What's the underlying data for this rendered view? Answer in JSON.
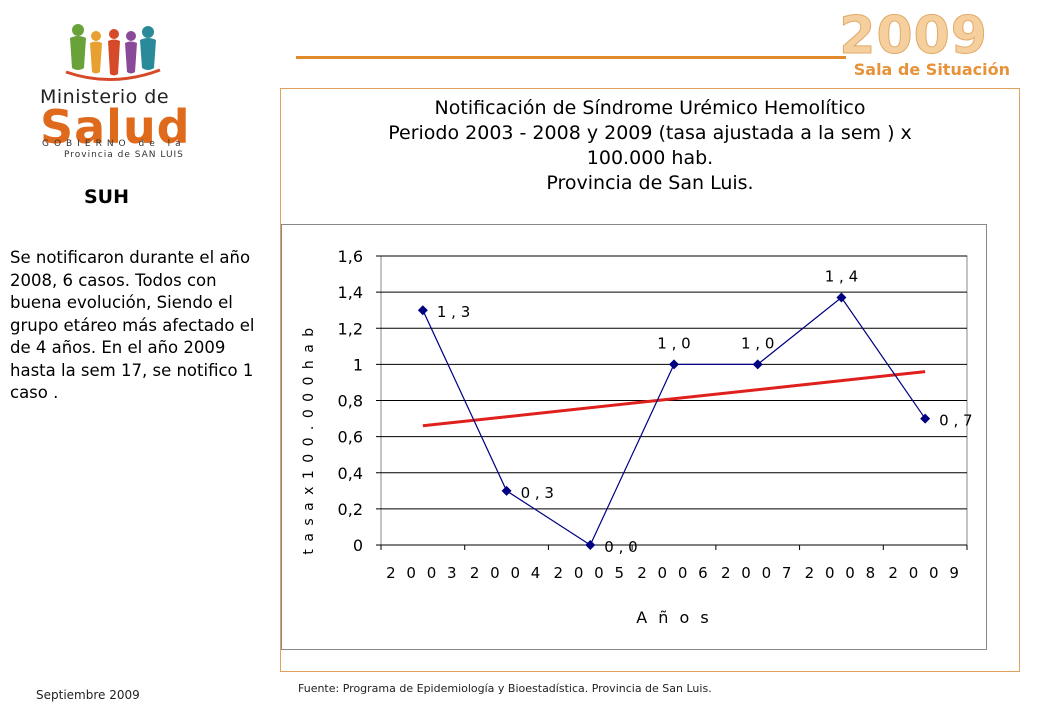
{
  "logo": {
    "ministerio": "Ministerio de",
    "salud": "Salud",
    "gobierno": "GOBIERNO de la",
    "provincia": "Provincia de SAN LUIS"
  },
  "header": {
    "year": "2009",
    "subtitle": "Sala de Situación"
  },
  "sidebar": {
    "title": "SUH",
    "body": "Se notificaron durante el año 2008, 6 casos. Todos con buena evolución, Siendo el grupo etáreo más afectado el de 4 años. En el año 2009 hasta la sem 17, se notifico 1 caso ."
  },
  "chart_title_lines": [
    "Notificación de Síndrome Urémico Hemolítico",
    "Periodo  2003 - 2008  y 2009 (tasa ajustada a la sem ) x",
    "100.000 hab.",
    "Provincia de San Luis."
  ],
  "chart_data": {
    "type": "line",
    "title": "Notificación de Síndrome Urémico Hemolítico Periodo 2003 - 2008 y 2009 (tasa ajustada a la sem ) x 100.000 hab. Provincia de San Luis.",
    "xlabel": "Años",
    "ylabel": "tasa x 100.000 hab",
    "categories": [
      "2003",
      "2004",
      "2005",
      "2006",
      "2007",
      "2008",
      "2009"
    ],
    "series": [
      {
        "values": [
          1.3,
          0.3,
          0.0,
          1.0,
          1.0,
          1.37,
          0.7
        ],
        "data_labels": [
          "1,3",
          "0,3",
          "0,0",
          "1,0",
          "1,0",
          "1,4",
          "0,7"
        ],
        "color": "#000080",
        "marker": "diamond"
      },
      {
        "type": "linear-trend",
        "values": [
          0.66,
          0.71,
          0.76,
          0.81,
          0.86,
          0.91,
          0.96
        ],
        "color": "#e0201c"
      }
    ],
    "ylim": [
      0,
      1.6
    ],
    "yticks": [
      "0",
      "0,2",
      "0,4",
      "0,6",
      "0,8",
      "1",
      "1,2",
      "1,4",
      "1,6"
    ],
    "grid": true,
    "legend": "none"
  },
  "footer": {
    "source": "Fuente: Programa de Epidemiología y Bioestadística. Provincia de San Luis.",
    "date": "Septiembre 2009"
  },
  "colors": {
    "accent": "#e08a2c",
    "series": "#000080",
    "trend": "#e0201c"
  }
}
